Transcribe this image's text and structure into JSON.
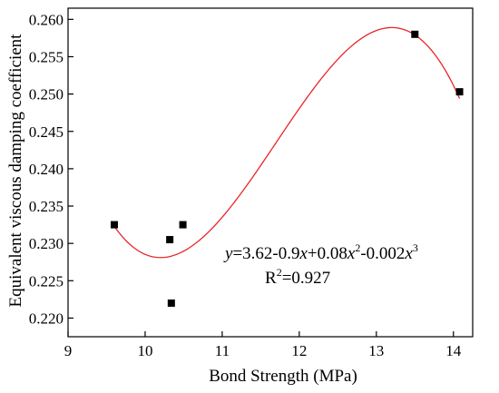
{
  "chart_data": {
    "type": "scatter",
    "title": "",
    "xlabel": "Bond Strength (MPa)",
    "ylabel": "Equivalent viscous damping coefficient",
    "xlim": [
      9,
      14.25
    ],
    "ylim": [
      0.2175,
      0.2615
    ],
    "x_ticks": [
      9,
      10,
      11,
      12,
      13,
      14
    ],
    "y_ticks": [
      0.22,
      0.225,
      0.23,
      0.235,
      0.24,
      0.245,
      0.25,
      0.255,
      0.26
    ],
    "x_tick_labels": [
      "9",
      "10",
      "11",
      "12",
      "13",
      "14"
    ],
    "y_tick_labels": [
      "0.220",
      "0.225",
      "0.230",
      "0.235",
      "0.240",
      "0.245",
      "0.250",
      "0.255",
      "0.260"
    ],
    "grid": false,
    "legend": "none",
    "points": [
      {
        "x": 9.6,
        "y": 0.2325
      },
      {
        "x": 10.32,
        "y": 0.2305
      },
      {
        "x": 10.34,
        "y": 0.222
      },
      {
        "x": 10.49,
        "y": 0.2325
      },
      {
        "x": 13.5,
        "y": 0.258
      },
      {
        "x": 14.08,
        "y": 0.2503
      }
    ],
    "fit_curve": {
      "type": "cubic",
      "x_range": [
        9.6,
        14.08
      ],
      "minimum": {
        "x": 10.2,
        "y": 0.2281
      },
      "maximum": {
        "x": 13.2,
        "y": 0.2589
      }
    },
    "equation_parts": [
      "y",
      "=3.62-0.9",
      "x",
      "+0.08",
      "x",
      "2",
      "-0.002",
      "x",
      "3"
    ],
    "r2_parts": [
      "R",
      "2",
      "=0.927"
    ],
    "colors": {
      "points": "#000000",
      "curve": "#e8262b",
      "axes": "#000000"
    }
  }
}
